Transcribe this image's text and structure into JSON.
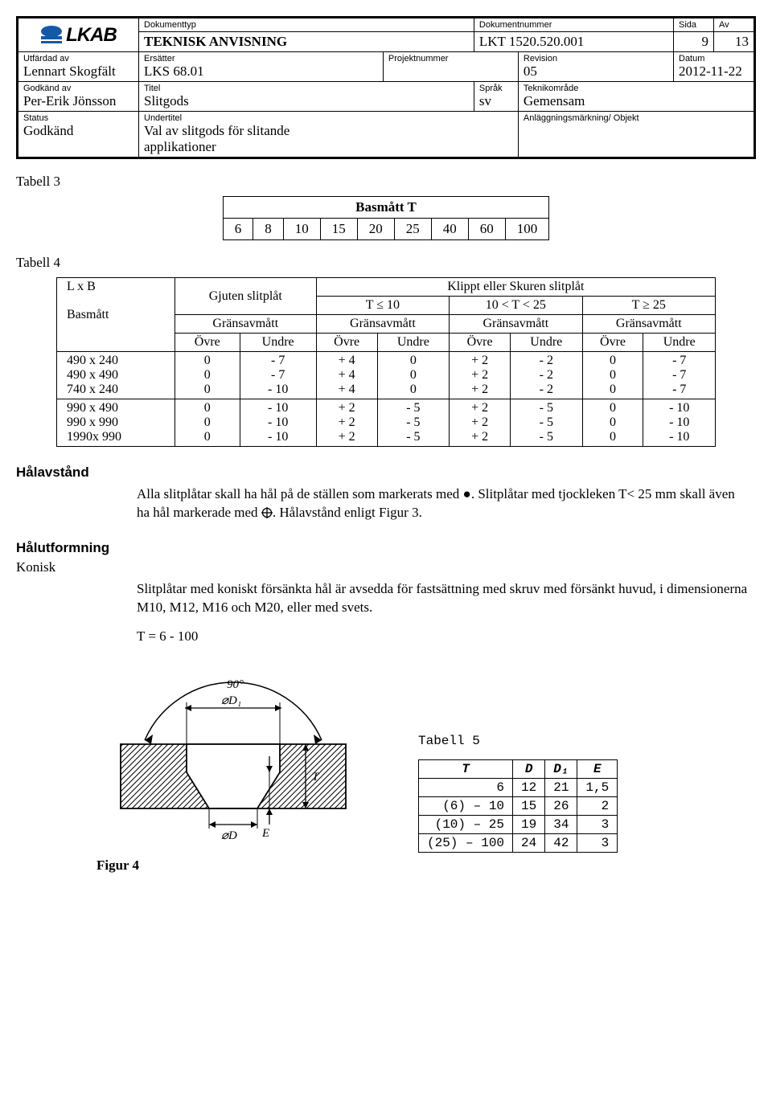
{
  "header": {
    "labels": {
      "dokumenttyp": "Dokumenttyp",
      "dokumentnummer": "Dokumentnummer",
      "sida": "Sida",
      "av": "Av",
      "utfardad": "Utfärdad av",
      "ersatter": "Ersätter",
      "projektnummer": "Projektnummer",
      "revision": "Revision",
      "datum": "Datum",
      "godkand_av": "Godkänd av",
      "titel": "Titel",
      "sprak": "Språk",
      "teknikomrade": "Teknikområde",
      "status": "Status",
      "undertitel": "Undertitel",
      "anlaggning": "Anläggningsmärkning/ Objekt"
    },
    "dokumenttyp": "TEKNISK ANVISNING",
    "dokumentnummer": "LKT 1520.520.001",
    "sida": "9",
    "av": "13",
    "utfardad": "Lennart Skogfält",
    "ersatter": "LKS 68.01",
    "projektnummer": "",
    "revision": "05",
    "datum": "2012-11-22",
    "godkand_av": "Per-Erik Jönsson",
    "titel": "Slitgods",
    "sprak": "sv",
    "teknikomrade": "Gemensam",
    "status": "Godkänd",
    "undertitel1": "Val av slitgods för slitande",
    "undertitel2": "applikationer",
    "anlaggning": "",
    "logo_text": "LKAB"
  },
  "tabell3": {
    "title": "Tabell 3",
    "head": "Basmått T",
    "values": [
      "6",
      "8",
      "10",
      "15",
      "20",
      "25",
      "40",
      "60",
      "100"
    ]
  },
  "tabell4": {
    "title": "Tabell 4",
    "lxb": "L x B",
    "basmatt": "Basmått",
    "gjuten": "Gjuten slitplåt",
    "klippt": "Klippt eller Skuren slitplåt",
    "tg0": "T ≤  10",
    "tg1": "10 < T < 25",
    "tg2": "T ≥ 25",
    "gransav": "Gränsavmått",
    "ovre": "Övre",
    "undre": "Undre",
    "rows": [
      {
        "dim": "490 x 240",
        "c": [
          "0",
          "- 7",
          "+ 4",
          "0",
          "+ 2",
          "- 2",
          "0",
          "- 7"
        ]
      },
      {
        "dim": "490 x 490",
        "c": [
          "0",
          "- 7",
          "+ 4",
          "0",
          "+ 2",
          "- 2",
          "0",
          "- 7"
        ]
      },
      {
        "dim": "740 x 240",
        "c": [
          "0",
          "- 10",
          "+ 4",
          "0",
          "+ 2",
          "- 2",
          "0",
          "- 7"
        ]
      },
      {
        "dim": "990 x 490",
        "c": [
          "0",
          "- 10",
          "+ 2",
          "- 5",
          "+ 2",
          "- 5",
          "0",
          "- 10"
        ]
      },
      {
        "dim": "990 x 990",
        "c": [
          "0",
          "- 10",
          "+ 2",
          "- 5",
          "+ 2",
          "- 5",
          "0",
          "- 10"
        ]
      },
      {
        "dim": "1990x 990",
        "c": [
          "0",
          "- 10",
          "+ 2",
          "- 5",
          "+ 2",
          "- 5",
          "0",
          "- 10"
        ]
      }
    ]
  },
  "halavstand": {
    "title": "Hålavstånd",
    "p1a": "Alla slitplåtar skall ha hål på de ställen som markerats med ",
    "p1b": ". Slitplåtar med tjockleken T< 25 mm skall även ha hål markerade med ",
    "p1c": ". Hålavstånd enligt Figur 3."
  },
  "halutformning": {
    "title": "Hålutformning",
    "sub": "Konisk",
    "p1": "Slitplåtar med koniskt försänkta hål är avsedda för fastsättning med skruv med försänkt huvud, i dimensionerna M10, M12, M16 och M20, eller med svets.",
    "t_range": "T = 6 - 100"
  },
  "figur4": {
    "caption": "Figur 4",
    "angle": "90°",
    "d1": "⌀D₁",
    "d": "⌀D",
    "t": "T",
    "e": "E"
  },
  "tabell5": {
    "title": "Tabell 5",
    "headers": [
      "T",
      "D",
      "D₁",
      "E"
    ],
    "rows": [
      [
        "6",
        "12",
        "21",
        "1,5"
      ],
      [
        "(6) – 10",
        "15",
        "26",
        "2"
      ],
      [
        "(10) – 25",
        "19",
        "34",
        "3"
      ],
      [
        "(25) – 100",
        "24",
        "42",
        "3"
      ]
    ]
  }
}
